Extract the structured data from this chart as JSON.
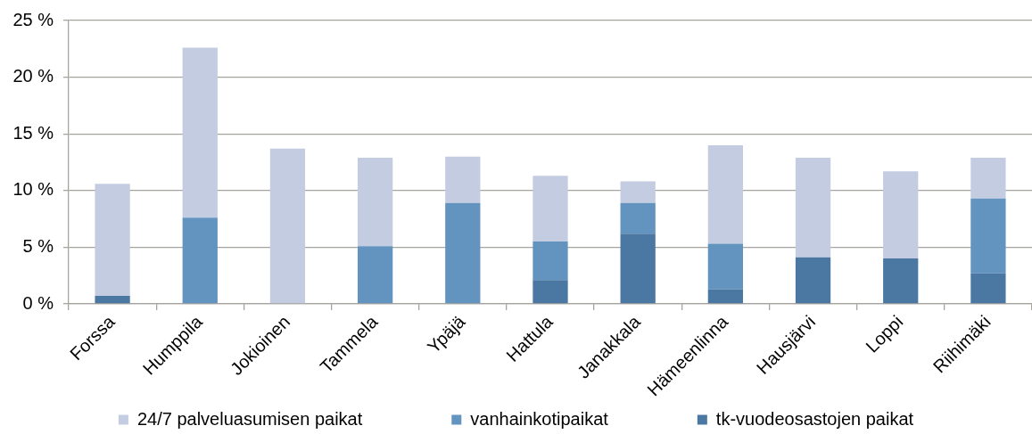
{
  "chart_data": {
    "type": "bar",
    "stacked": true,
    "categories": [
      "Forssa",
      "Humppila",
      "Jokioinen",
      "Tammela",
      "Ypäjä",
      "Hattula",
      "Janakkala",
      "Hämeenlinna",
      "Hausjärvi",
      "Loppi",
      "Riihimäki"
    ],
    "series": [
      {
        "name": "tk-vuodeosastojen paikat",
        "color": "#4a78a2",
        "values": [
          0.7,
          0,
          0,
          0,
          0,
          2.1,
          6.2,
          1.3,
          4.1,
          4.0,
          2.7
        ]
      },
      {
        "name": "vanhainkotipaikat",
        "color": "#6393bf",
        "values": [
          0,
          7.6,
          0,
          5.1,
          8.9,
          3.4,
          2.7,
          4.0,
          0,
          0,
          6.6
        ]
      },
      {
        "name": "24/7 palveluasumisen paikat",
        "color": "#c3cce0",
        "values": [
          9.9,
          15.0,
          13.7,
          7.8,
          4.1,
          5.8,
          1.9,
          8.7,
          8.8,
          7.7,
          3.6
        ]
      }
    ],
    "ylim": [
      0,
      25
    ],
    "yticks": [
      {
        "value": 0,
        "label": "0 %"
      },
      {
        "value": 5,
        "label": "5 %"
      },
      {
        "value": 10,
        "label": "10 %"
      },
      {
        "value": 15,
        "label": "15 %"
      },
      {
        "value": 20,
        "label": "20 %"
      },
      {
        "value": 25,
        "label": "25 %"
      }
    ],
    "grid": "y",
    "legend": "bottom"
  }
}
